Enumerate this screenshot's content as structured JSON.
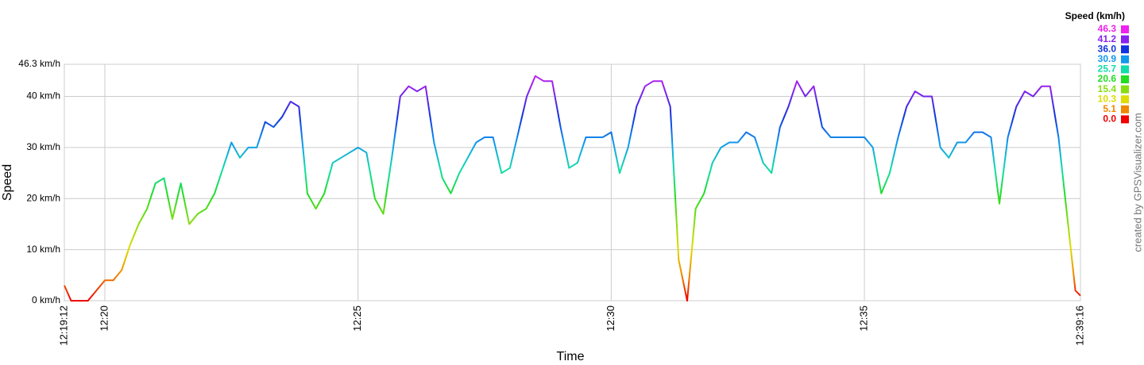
{
  "chart_data": {
    "type": "line",
    "xlabel": "Time",
    "ylabel": "Speed",
    "credit": "created by GPSVisualizer.com",
    "legend_title": "Speed (km/h)",
    "legend": [
      {
        "value": 46.3,
        "label": "46.3",
        "color": "#ee22ee"
      },
      {
        "value": 41.2,
        "label": "41.2",
        "color": "#8822ee"
      },
      {
        "value": 36,
        "label": "36.0",
        "color": "#1133dd"
      },
      {
        "value": 30.9,
        "label": "30.9",
        "color": "#1199ee"
      },
      {
        "value": 25.7,
        "label": "25.7",
        "color": "#11ddaa"
      },
      {
        "value": 20.6,
        "label": "20.6",
        "color": "#22dd22"
      },
      {
        "value": 15.4,
        "label": "15.4",
        "color": "#88dd11"
      },
      {
        "value": 10.3,
        "label": "10.3",
        "color": "#dddd00"
      },
      {
        "value": 5.1,
        "label": "5.1",
        "color": "#ee8800"
      },
      {
        "value": 0,
        "label": "0.0",
        "color": "#ee0000"
      }
    ],
    "xlim": [
      "12:19:12",
      "12:39:16"
    ],
    "xticks": [
      "12:19:12",
      "12:20",
      "12:25",
      "12:30",
      "12:35",
      "12:39:16"
    ],
    "ylim": [
      0,
      46.3
    ],
    "yticks": [
      {
        "value": 0,
        "label": "0 km/h"
      },
      {
        "value": 10,
        "label": "10 km/h"
      },
      {
        "value": 20,
        "label": "20 km/h"
      },
      {
        "value": 30,
        "label": "30 km/h"
      },
      {
        "value": 40,
        "label": "40 km/h"
      },
      {
        "value": 46.3,
        "label": "46.3 km/h"
      }
    ],
    "grid": true,
    "x": [
      "12:19:12",
      "12:19:20",
      "12:19:30",
      "12:19:40",
      "12:19:50",
      "12:20:00",
      "12:20:10",
      "12:20:20",
      "12:20:30",
      "12:20:40",
      "12:20:50",
      "12:21:00",
      "12:21:10",
      "12:21:20",
      "12:21:30",
      "12:21:40",
      "12:21:50",
      "12:22:00",
      "12:22:10",
      "12:22:20",
      "12:22:30",
      "12:22:40",
      "12:22:50",
      "12:23:00",
      "12:23:10",
      "12:23:20",
      "12:23:30",
      "12:23:40",
      "12:23:50",
      "12:24:00",
      "12:24:10",
      "12:24:20",
      "12:24:30",
      "12:24:40",
      "12:24:50",
      "12:25:00",
      "12:25:10",
      "12:25:20",
      "12:25:30",
      "12:25:40",
      "12:25:50",
      "12:26:00",
      "12:26:10",
      "12:26:20",
      "12:26:30",
      "12:26:40",
      "12:26:50",
      "12:27:00",
      "12:27:10",
      "12:27:20",
      "12:27:30",
      "12:27:40",
      "12:27:50",
      "12:28:00",
      "12:28:10",
      "12:28:20",
      "12:28:30",
      "12:28:40",
      "12:28:50",
      "12:29:00",
      "12:29:10",
      "12:29:20",
      "12:29:30",
      "12:29:40",
      "12:29:50",
      "12:30:00",
      "12:30:10",
      "12:30:20",
      "12:30:30",
      "12:30:40",
      "12:30:50",
      "12:31:00",
      "12:31:10",
      "12:31:20",
      "12:31:30",
      "12:31:40",
      "12:31:50",
      "12:32:00",
      "12:32:10",
      "12:32:20",
      "12:32:30",
      "12:32:40",
      "12:32:50",
      "12:33:00",
      "12:33:10",
      "12:33:20",
      "12:33:30",
      "12:33:40",
      "12:33:50",
      "12:34:00",
      "12:34:10",
      "12:34:20",
      "12:34:30",
      "12:34:40",
      "12:34:50",
      "12:35:00",
      "12:35:10",
      "12:35:20",
      "12:35:30",
      "12:35:40",
      "12:35:50",
      "12:36:00",
      "12:36:10",
      "12:36:20",
      "12:36:30",
      "12:36:40",
      "12:36:50",
      "12:37:00",
      "12:37:10",
      "12:37:20",
      "12:37:30",
      "12:37:40",
      "12:37:50",
      "12:38:00",
      "12:38:10",
      "12:38:20",
      "12:38:30",
      "12:38:40",
      "12:38:50",
      "12:39:00",
      "12:39:10",
      "12:39:16"
    ],
    "values": [
      3,
      0,
      0,
      0,
      2,
      4,
      4,
      6,
      11,
      15,
      18,
      23,
      24,
      16,
      23,
      15,
      17,
      18,
      21,
      26,
      31,
      28,
      30,
      30,
      35,
      34,
      36,
      39,
      38,
      21,
      18,
      21,
      27,
      28,
      29,
      30,
      29,
      20,
      17,
      28,
      40,
      42,
      41,
      42,
      31,
      24,
      21,
      25,
      28,
      31,
      32,
      32,
      25,
      26,
      33,
      40,
      44,
      43,
      43,
      34,
      26,
      27,
      32,
      32,
      32,
      33,
      25,
      30,
      38,
      42,
      43,
      43,
      38,
      8,
      0,
      18,
      21,
      27,
      30,
      31,
      31,
      33,
      32,
      27,
      25,
      34,
      38,
      43,
      40,
      42,
      34,
      32,
      32,
      32,
      32,
      32,
      30,
      21,
      25,
      32,
      38,
      41,
      40,
      40,
      30,
      28,
      31,
      31,
      33,
      33,
      32,
      19,
      32,
      38,
      41,
      40,
      42,
      42,
      32,
      17,
      2,
      1
    ]
  }
}
